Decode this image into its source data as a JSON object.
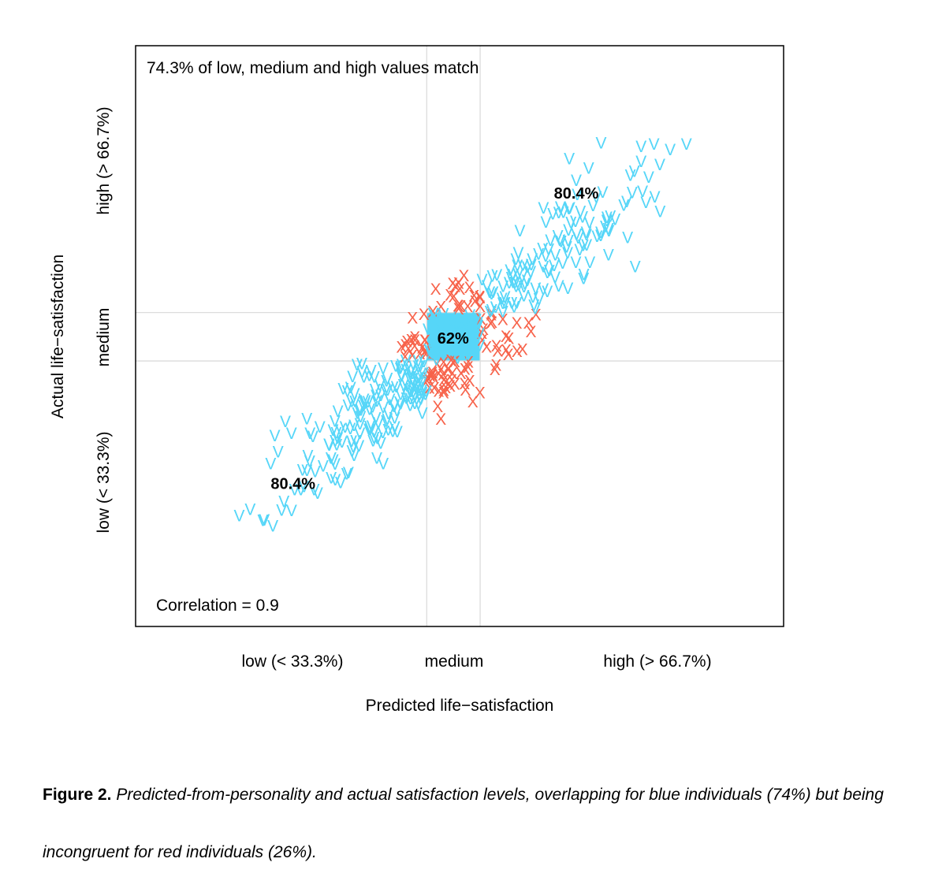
{
  "chart_data": {
    "type": "scatter",
    "title": "",
    "xlabel": "Predicted life−satisfaction",
    "ylabel": "Actual life−satisfaction",
    "x_tick_labels": [
      "low (< 33.3%)",
      "medium",
      "high (> 66.7%)"
    ],
    "y_tick_labels": [
      "low (< 33.3%)",
      "medium",
      "high (> 66.7%)"
    ],
    "xlim": [
      0,
      1
    ],
    "ylim": [
      0,
      1
    ],
    "grid": "tercile cut lines only",
    "thresholds_x": [
      0.4493,
      0.5317
    ],
    "thresholds_y": [
      0.5405,
      0.4572
    ],
    "match_note": "74.3% of low, medium and high values match",
    "correlation_note": "Correlation = 0.9",
    "cell_labels": [
      {
        "text": "80.4%",
        "x": 0.68,
        "y": 0.745
      },
      {
        "text": "62%",
        "x": 0.49,
        "y": 0.495
      },
      {
        "text": "80.4%",
        "x": 0.243,
        "y": 0.245
      }
    ],
    "series": [
      {
        "marker": "V",
        "color": "#56d6f8",
        "meaning": "matching tercile"
      },
      {
        "marker": "X",
        "color": "#f7634b",
        "meaning": "mismatching tercile"
      }
    ],
    "points_summary": "Several hundred points along a diagonal band; x from about 0.16 to 0.83, y from about 0.19 to 0.82; X markers lie next to the central medium/medium cell."
  },
  "caption": {
    "label": "Figure 2.",
    "text": "Predicted-from-personality and actual satisfaction levels, overlapping for blue individuals (74%) but being incongruent for red individuals (26%)."
  }
}
